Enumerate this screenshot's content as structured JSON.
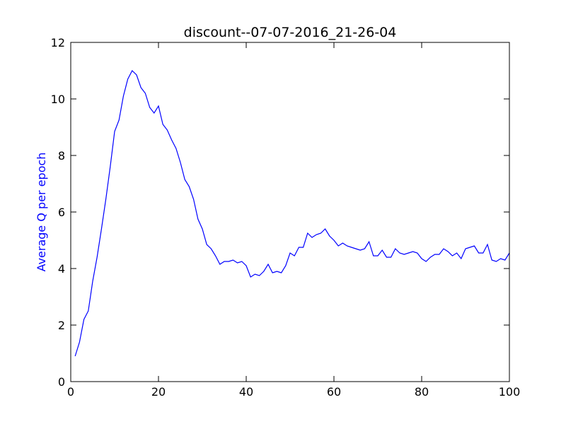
{
  "chart_data": {
    "type": "line",
    "title": "discount--07-07-2016_21-26-04",
    "y_label": "Average Q per epoch",
    "y_label_color": "#0000ff",
    "x": [
      1,
      2,
      3,
      4,
      5,
      6,
      7,
      8,
      9,
      10,
      11,
      12,
      13,
      14,
      15,
      16,
      17,
      18,
      19,
      20,
      21,
      22,
      23,
      24,
      25,
      26,
      27,
      28,
      29,
      30,
      31,
      32,
      33,
      34,
      35,
      36,
      37,
      38,
      39,
      40,
      41,
      42,
      43,
      44,
      45,
      46,
      47,
      48,
      49,
      50,
      51,
      52,
      53,
      54,
      55,
      56,
      57,
      58,
      59,
      60,
      61,
      62,
      63,
      64,
      65,
      66,
      67,
      68,
      69,
      70,
      71,
      72,
      73,
      74,
      75,
      76,
      77,
      78,
      79,
      80,
      81,
      82,
      83,
      84,
      85,
      86,
      87,
      88,
      89,
      90,
      91,
      92,
      93,
      94,
      95,
      96,
      97,
      98,
      99,
      100
    ],
    "series": [
      {
        "color": "#0000ff",
        "values": [
          0.9,
          1.4,
          2.2,
          2.5,
          3.55,
          4.4,
          5.4,
          6.45,
          7.6,
          8.85,
          9.25,
          10.1,
          10.7,
          11.0,
          10.85,
          10.4,
          10.2,
          9.7,
          9.5,
          9.75,
          9.1,
          8.9,
          8.55,
          8.25,
          7.75,
          7.15,
          6.9,
          6.45,
          5.75,
          5.4,
          4.85,
          4.7,
          4.45,
          4.15,
          4.25,
          4.25,
          4.3,
          4.2,
          4.25,
          4.1,
          3.7,
          3.8,
          3.75,
          3.9,
          4.15,
          3.85,
          3.9,
          3.85,
          4.1,
          4.55,
          4.45,
          4.75,
          4.75,
          5.25,
          5.1,
          5.2,
          5.25,
          5.4,
          5.15,
          5.0,
          4.8,
          4.9,
          4.8,
          4.75,
          4.7,
          4.65,
          4.7,
          4.95,
          4.45,
          4.45,
          4.65,
          4.4,
          4.4,
          4.7,
          4.55,
          4.5,
          4.55,
          4.6,
          4.55,
          4.35,
          4.25,
          4.4,
          4.5,
          4.5,
          4.7,
          4.6,
          4.45,
          4.55,
          4.35,
          4.7,
          4.75,
          4.8,
          4.55,
          4.55,
          4.85,
          4.3,
          4.25,
          4.35,
          4.3,
          4.55
        ]
      }
    ],
    "xlim": [
      0,
      100
    ],
    "xticks": [
      0,
      20,
      40,
      60,
      80,
      100
    ],
    "ylim": [
      0,
      12
    ],
    "yticks": [
      0,
      2,
      4,
      6,
      8,
      10,
      12
    ]
  }
}
